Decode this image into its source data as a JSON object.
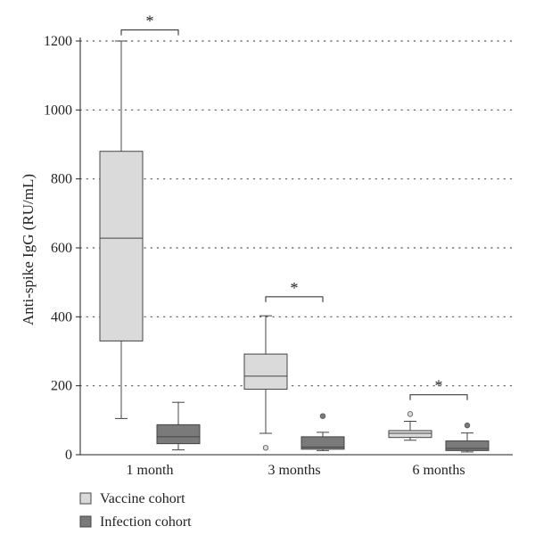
{
  "chart_data": {
    "type": "box",
    "ylabel": "Anti-spike IgG (RU/mL)",
    "ylim": [
      0,
      1200
    ],
    "yticks": [
      0,
      200,
      400,
      600,
      800,
      1000,
      1200
    ],
    "grid": "horizontal-dotted",
    "categories": [
      "1 month",
      "3 months",
      "6 months"
    ],
    "series": [
      {
        "name": "Vaccine cohort",
        "color": "#dadada",
        "boxes": [
          {
            "min": 105,
            "q1": 330,
            "median": 628,
            "q3": 880,
            "max": 1200,
            "outliers": []
          },
          {
            "min": 62,
            "q1": 190,
            "median": 228,
            "q3": 292,
            "max": 403,
            "outliers": [
              20
            ]
          },
          {
            "min": 42,
            "q1": 50,
            "median": 62,
            "q3": 70,
            "max": 97,
            "outliers": [
              118
            ]
          }
        ]
      },
      {
        "name": "Infection cohort",
        "color": "#7a7a7a",
        "boxes": [
          {
            "min": 14,
            "q1": 32,
            "median": 52,
            "q3": 87,
            "max": 152,
            "outliers": []
          },
          {
            "min": 12,
            "q1": 16,
            "median": 22,
            "q3": 52,
            "max": 65,
            "outliers": [
              112
            ]
          },
          {
            "min": 8,
            "q1": 12,
            "median": 18,
            "q3": 40,
            "max": 63,
            "outliers": [
              85
            ]
          }
        ]
      }
    ],
    "annotations": [
      {
        "label": "*",
        "group": 0,
        "level": 1232
      },
      {
        "label": "*",
        "group": 1,
        "level": 458
      },
      {
        "label": "*",
        "group": 2,
        "level": 174
      }
    ],
    "legend": {
      "position": "bottom-left",
      "entries": [
        "Vaccine cohort",
        "Infection cohort"
      ]
    }
  }
}
